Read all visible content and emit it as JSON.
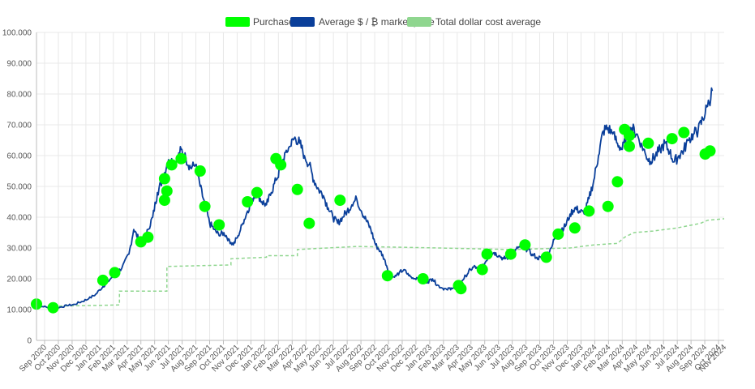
{
  "colors": {
    "purchases": "#00ff00",
    "price": "#0a3f9a",
    "dca": "#8fd68f",
    "grid": "#e8e8e8",
    "axis": "#bdbdbd"
  },
  "legend": {
    "purchases": "Purchases",
    "price": "Average $ / ₿ market price",
    "dca": "Total dollar cost average"
  },
  "chart_data": {
    "type": "line",
    "ylim": [
      0,
      100000
    ],
    "y_ticks": [
      0,
      10000,
      20000,
      30000,
      40000,
      50000,
      60000,
      70000,
      80000,
      90000,
      100000
    ],
    "y_tick_labels": [
      "0",
      "10.000",
      "20.000",
      "30.000",
      "40.000",
      "50.000",
      "60.000",
      "70.000",
      "80.000",
      "90.000",
      "100.000"
    ],
    "x_categories": [
      "Sep 2020",
      "Oct 2020",
      "Nov 2020",
      "Dec 2020",
      "Jan 2021",
      "Feb 2021",
      "Mar 2021",
      "Apr 2021",
      "May 2021",
      "Jun 2021",
      "Jul 2021",
      "Aug 2021",
      "Sep 2021",
      "Oct 2021",
      "Nov 2021",
      "Dec 2021",
      "Jan 2022",
      "Feb 2022",
      "Mar 2022",
      "Apr 2022",
      "May 2022",
      "Jun 2022",
      "Jul 2022",
      "Aug 2022",
      "Sep 2022",
      "Oct 2022",
      "Nov 2022",
      "Dec 2022",
      "Jan 2023",
      "Feb 2023",
      "Mar 2023",
      "Apr 2023",
      "May 2023",
      "Jun 2023",
      "Jul 2023",
      "Aug 2023",
      "Sep 2023",
      "Oct 2023",
      "Nov 2023",
      "Dec 2023",
      "Jan 2024",
      "Feb 2024",
      "Mar 2024",
      "Apr 2024",
      "May 2024",
      "Jun 2024",
      "Jul 2024",
      "Aug 2024",
      "Sep 2024",
      "Oct 2024",
      "Nov 2024"
    ],
    "series": [
      {
        "name": "Average $ / ₿ market price",
        "key": "price",
        "points": [
          [
            0.0,
            11200
          ],
          [
            0.3,
            10900
          ],
          [
            0.6,
            10600
          ],
          [
            1.0,
            10800
          ],
          [
            1.3,
            11300
          ],
          [
            1.6,
            11700
          ],
          [
            1.9,
            12600
          ],
          [
            2.2,
            13500
          ],
          [
            2.5,
            15000
          ],
          [
            2.8,
            17500
          ],
          [
            3.0,
            19000
          ],
          [
            3.3,
            21500
          ],
          [
            3.6,
            23500
          ],
          [
            3.9,
            28000
          ],
          [
            4.1,
            36000
          ],
          [
            4.3,
            33000
          ],
          [
            4.5,
            32000
          ],
          [
            4.7,
            36000
          ],
          [
            4.9,
            40000
          ],
          [
            5.1,
            48000
          ],
          [
            5.3,
            52000
          ],
          [
            5.5,
            57000
          ],
          [
            5.7,
            59000
          ],
          [
            5.9,
            58000
          ],
          [
            6.1,
            62000
          ],
          [
            6.3,
            59000
          ],
          [
            6.5,
            56000
          ],
          [
            6.7,
            57000
          ],
          [
            6.9,
            50000
          ],
          [
            7.1,
            44000
          ],
          [
            7.3,
            38000
          ],
          [
            7.5,
            36000
          ],
          [
            7.7,
            34000
          ],
          [
            7.9,
            35000
          ],
          [
            8.1,
            33000
          ],
          [
            8.3,
            31000
          ],
          [
            8.5,
            34000
          ],
          [
            8.7,
            38000
          ],
          [
            8.9,
            42000
          ],
          [
            9.1,
            46000
          ],
          [
            9.3,
            48000
          ],
          [
            9.5,
            45000
          ],
          [
            9.7,
            44000
          ],
          [
            9.9,
            48000
          ],
          [
            10.1,
            52000
          ],
          [
            10.3,
            56000
          ],
          [
            10.5,
            61000
          ],
          [
            10.7,
            63000
          ],
          [
            10.9,
            66000
          ],
          [
            11.1,
            64000
          ],
          [
            11.3,
            60000
          ],
          [
            11.5,
            57000
          ],
          [
            11.7,
            52000
          ],
          [
            11.9,
            49000
          ],
          [
            12.1,
            47000
          ],
          [
            12.3,
            43000
          ],
          [
            12.5,
            40000
          ],
          [
            12.7,
            38000
          ],
          [
            12.9,
            40000
          ],
          [
            13.1,
            42000
          ],
          [
            13.3,
            44000
          ],
          [
            13.5,
            46000
          ],
          [
            13.7,
            42000
          ],
          [
            13.9,
            39000
          ],
          [
            14.1,
            36000
          ],
          [
            14.3,
            31000
          ],
          [
            14.5,
            29000
          ],
          [
            14.7,
            26000
          ],
          [
            14.9,
            21000
          ],
          [
            15.1,
            20500
          ],
          [
            15.3,
            22000
          ],
          [
            15.5,
            23000
          ],
          [
            15.7,
            21000
          ],
          [
            15.9,
            20000
          ],
          [
            16.1,
            20500
          ],
          [
            16.3,
            19500
          ],
          [
            16.5,
            19000
          ],
          [
            16.7,
            20000
          ],
          [
            16.9,
            18000
          ],
          [
            17.1,
            17000
          ],
          [
            17.3,
            16500
          ],
          [
            17.5,
            17000
          ],
          [
            17.7,
            16800
          ],
          [
            17.9,
            19000
          ],
          [
            18.1,
            21000
          ],
          [
            18.3,
            23000
          ],
          [
            18.5,
            24000
          ],
          [
            18.7,
            22000
          ],
          [
            18.9,
            25000
          ],
          [
            19.1,
            28000
          ],
          [
            19.3,
            28500
          ],
          [
            19.5,
            27500
          ],
          [
            19.7,
            26500
          ],
          [
            19.9,
            27000
          ],
          [
            20.1,
            28000
          ],
          [
            20.3,
            30000
          ],
          [
            20.5,
            30500
          ],
          [
            20.7,
            29500
          ],
          [
            20.9,
            28000
          ],
          [
            21.1,
            27000
          ],
          [
            21.3,
            26500
          ],
          [
            21.5,
            27500
          ],
          [
            21.7,
            30000
          ],
          [
            21.9,
            34000
          ],
          [
            22.1,
            36000
          ],
          [
            22.3,
            37000
          ],
          [
            22.5,
            41000
          ],
          [
            22.7,
            43000
          ],
          [
            22.9,
            42000
          ],
          [
            23.1,
            41000
          ],
          [
            23.3,
            46000
          ],
          [
            23.5,
            52000
          ],
          [
            23.7,
            60000
          ],
          [
            23.9,
            68000
          ],
          [
            24.1,
            69000
          ],
          [
            24.3,
            67000
          ],
          [
            24.5,
            64000
          ],
          [
            24.7,
            62000
          ],
          [
            24.9,
            66000
          ],
          [
            25.1,
            69000
          ],
          [
            25.3,
            67000
          ],
          [
            25.5,
            64000
          ],
          [
            25.7,
            60000
          ],
          [
            25.9,
            58000
          ],
          [
            26.1,
            60000
          ],
          [
            26.3,
            62000
          ],
          [
            26.5,
            64000
          ],
          [
            26.7,
            61000
          ],
          [
            26.9,
            58000
          ],
          [
            27.1,
            60000
          ],
          [
            27.3,
            62000
          ],
          [
            27.5,
            65000
          ],
          [
            27.7,
            67000
          ],
          [
            27.9,
            68000
          ],
          [
            28.1,
            72000
          ],
          [
            28.3,
            76000
          ],
          [
            28.5,
            81000
          ]
        ]
      },
      {
        "name": "Total dollar cost average",
        "key": "dca",
        "points": [
          [
            0.0,
            11000
          ],
          [
            3.5,
            11500
          ],
          [
            3.5,
            16000
          ],
          [
            5.5,
            16000
          ],
          [
            5.5,
            24000
          ],
          [
            8.2,
            24500
          ],
          [
            8.2,
            26500
          ],
          [
            9.7,
            27000
          ],
          [
            9.7,
            27500
          ],
          [
            11.0,
            27500
          ],
          [
            11.0,
            29500
          ],
          [
            13.5,
            30500
          ],
          [
            17.0,
            30000
          ],
          [
            20.0,
            29500
          ],
          [
            22.5,
            30000
          ],
          [
            23.5,
            31000
          ],
          [
            24.5,
            31500
          ],
          [
            24.8,
            33500
          ],
          [
            25.2,
            35000
          ],
          [
            26.0,
            35500
          ],
          [
            27.0,
            36500
          ],
          [
            28.0,
            38000
          ],
          [
            28.3,
            39000
          ],
          [
            29.0,
            39500
          ]
        ]
      },
      {
        "name": "Purchases",
        "key": "purchases",
        "points": [
          [
            0.0,
            11800
          ],
          [
            0.7,
            10600
          ],
          [
            2.8,
            19500
          ],
          [
            3.3,
            22000
          ],
          [
            4.4,
            32000
          ],
          [
            4.7,
            33500
          ],
          [
            5.4,
            52500
          ],
          [
            5.5,
            48500
          ],
          [
            5.4,
            45500
          ],
          [
            5.7,
            57000
          ],
          [
            6.1,
            59000
          ],
          [
            6.9,
            55000
          ],
          [
            7.1,
            43500
          ],
          [
            7.7,
            37500
          ],
          [
            8.9,
            45000
          ],
          [
            9.3,
            48000
          ],
          [
            10.1,
            59000
          ],
          [
            10.3,
            57000
          ],
          [
            11.0,
            49000
          ],
          [
            11.5,
            38000
          ],
          [
            12.8,
            45500
          ],
          [
            14.8,
            21000
          ],
          [
            16.3,
            20000
          ],
          [
            17.8,
            17800
          ],
          [
            17.9,
            16800
          ],
          [
            18.8,
            23000
          ],
          [
            19.0,
            28000
          ],
          [
            20.0,
            28000
          ],
          [
            20.6,
            31000
          ],
          [
            21.5,
            27000
          ],
          [
            22.0,
            34500
          ],
          [
            22.7,
            36500
          ],
          [
            23.3,
            42000
          ],
          [
            24.1,
            43500
          ],
          [
            24.5,
            51500
          ],
          [
            24.8,
            68500
          ],
          [
            25.0,
            66500
          ],
          [
            25.0,
            63000
          ],
          [
            25.8,
            64000
          ],
          [
            26.8,
            65500
          ],
          [
            27.3,
            67500
          ],
          [
            28.2,
            60500
          ],
          [
            28.4,
            61500
          ]
        ]
      }
    ],
    "y_min": 0,
    "y_max": 100000,
    "x_max": 29.0
  }
}
